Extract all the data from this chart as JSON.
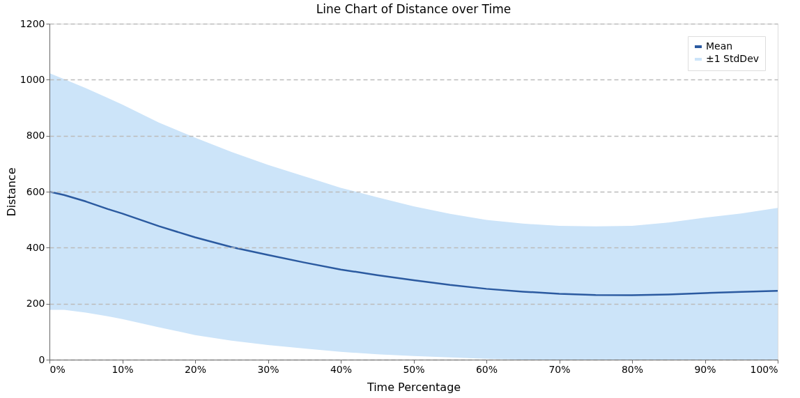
{
  "chart_data": {
    "type": "line",
    "title": "Line Chart of Distance over Time",
    "xlabel": "Time Percentage",
    "ylabel": "Distance",
    "x": [
      0,
      2,
      5,
      8,
      10,
      15,
      20,
      25,
      30,
      35,
      40,
      45,
      50,
      55,
      60,
      65,
      70,
      75,
      80,
      85,
      90,
      95,
      100
    ],
    "series": [
      {
        "name": "Mean",
        "color": "#2b5aa0",
        "values": [
          600,
          588,
          565,
          538,
          522,
          477,
          437,
          402,
          374,
          347,
          322,
          302,
          284,
          267,
          253,
          243,
          235,
          231,
          230,
          233,
          238,
          242,
          246
        ],
        "lower": [
          178,
          178,
          168,
          155,
          145,
          116,
          88,
          68,
          52,
          40,
          28,
          19,
          13,
          8,
          3,
          0,
          0,
          0,
          0,
          0,
          0,
          0,
          0
        ],
        "upper": [
          1023,
          1002,
          970,
          935,
          911,
          847,
          793,
          742,
          696,
          655,
          614,
          580,
          548,
          521,
          499,
          486,
          478,
          476,
          478,
          490,
          507,
          522,
          542
        ]
      }
    ],
    "annotations": [
      "±1 StdDev"
    ],
    "colors": [
      "#cce4f9"
    ],
    "xlim": [
      0,
      100
    ],
    "xticks": [
      {
        "value": 0,
        "label": "0%"
      },
      {
        "value": 10,
        "label": "10%"
      },
      {
        "value": 20,
        "label": "20%"
      },
      {
        "value": 30,
        "label": "30%"
      },
      {
        "value": 40,
        "label": "40%"
      },
      {
        "value": 50,
        "label": "50%"
      },
      {
        "value": 60,
        "label": "60%"
      },
      {
        "value": 70,
        "label": "70%"
      },
      {
        "value": 80,
        "label": "80%"
      },
      {
        "value": 90,
        "label": "90%"
      },
      {
        "value": 100,
        "label": "100%"
      }
    ],
    "ylim": [
      0,
      1200
    ],
    "yticks": [
      0,
      200,
      400,
      600,
      800,
      1000,
      1200
    ],
    "grid": "y",
    "legend": "top right"
  }
}
